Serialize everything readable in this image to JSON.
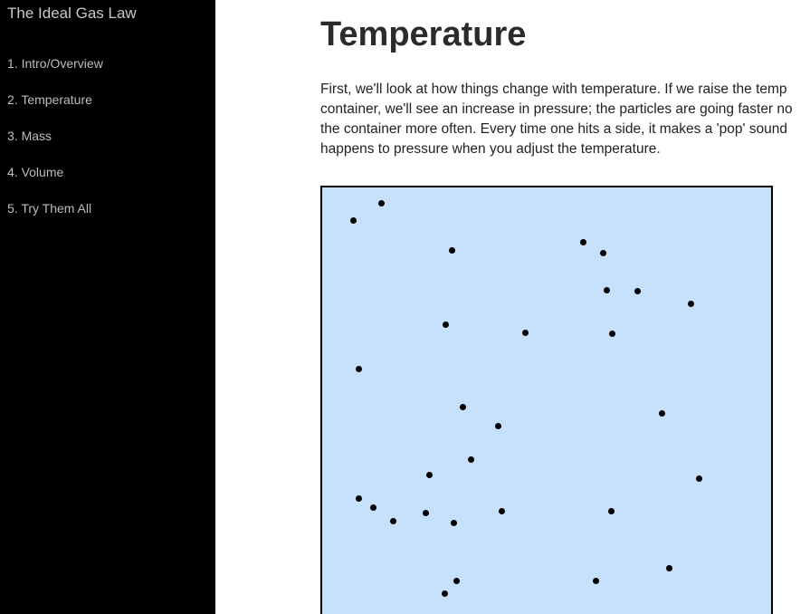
{
  "sidebar": {
    "title": "The Ideal Gas Law",
    "items": [
      {
        "label": "1. Intro/Overview"
      },
      {
        "label": "2. Temperature"
      },
      {
        "label": "3. Mass"
      },
      {
        "label": "4. Volume"
      },
      {
        "label": "5. Try Them All"
      }
    ]
  },
  "main": {
    "heading": "Temperature",
    "intro_lines": [
      "First, we'll look at how things change with temperature. If we raise the temp",
      "container, we'll see an increase in pressure; the particles are going faster no",
      "the container more often. Every time one hits a side, it makes a 'pop' sound",
      "happens to pressure when you adjust the temperature."
    ]
  },
  "simulation": {
    "particle_count": 33,
    "container_color": "#c7e1fc",
    "particle_color": "#000000"
  }
}
